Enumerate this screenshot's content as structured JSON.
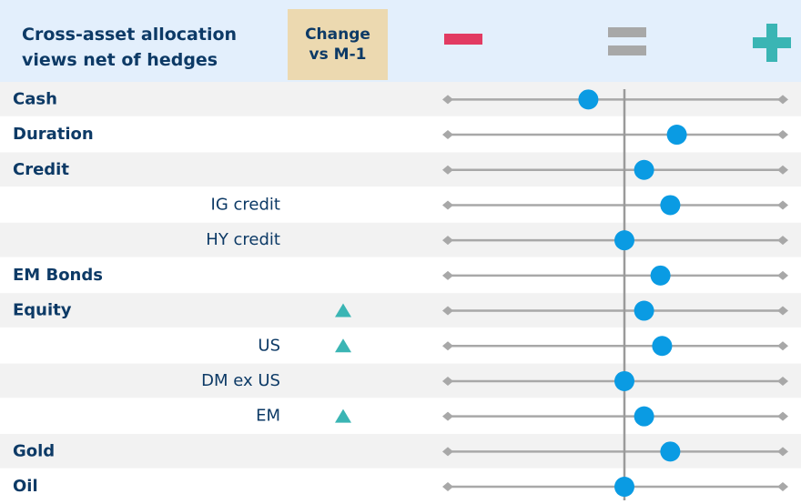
{
  "chart_data": {
    "type": "dot",
    "title": "Cross-asset allocation views net of hedges",
    "change_header": "Change vs M-1",
    "categories": [
      "Cash",
      "Duration",
      "Credit",
      "IG credit",
      "HY credit",
      "EM Bonds",
      "Equity",
      "US",
      "DM ex US",
      "EM",
      "Gold",
      "Oil"
    ],
    "sub": [
      false,
      false,
      false,
      true,
      true,
      false,
      false,
      true,
      true,
      true,
      false,
      false
    ],
    "changes": [
      null,
      null,
      null,
      null,
      null,
      null,
      "up",
      "up",
      null,
      "up",
      null,
      null
    ],
    "values": [
      -0.22,
      0.32,
      0.12,
      0.28,
      0,
      0.22,
      0.12,
      0.23,
      0,
      0.12,
      0.28,
      0
    ],
    "xlim": [
      -1,
      1
    ],
    "color": "#0a9be3"
  }
}
